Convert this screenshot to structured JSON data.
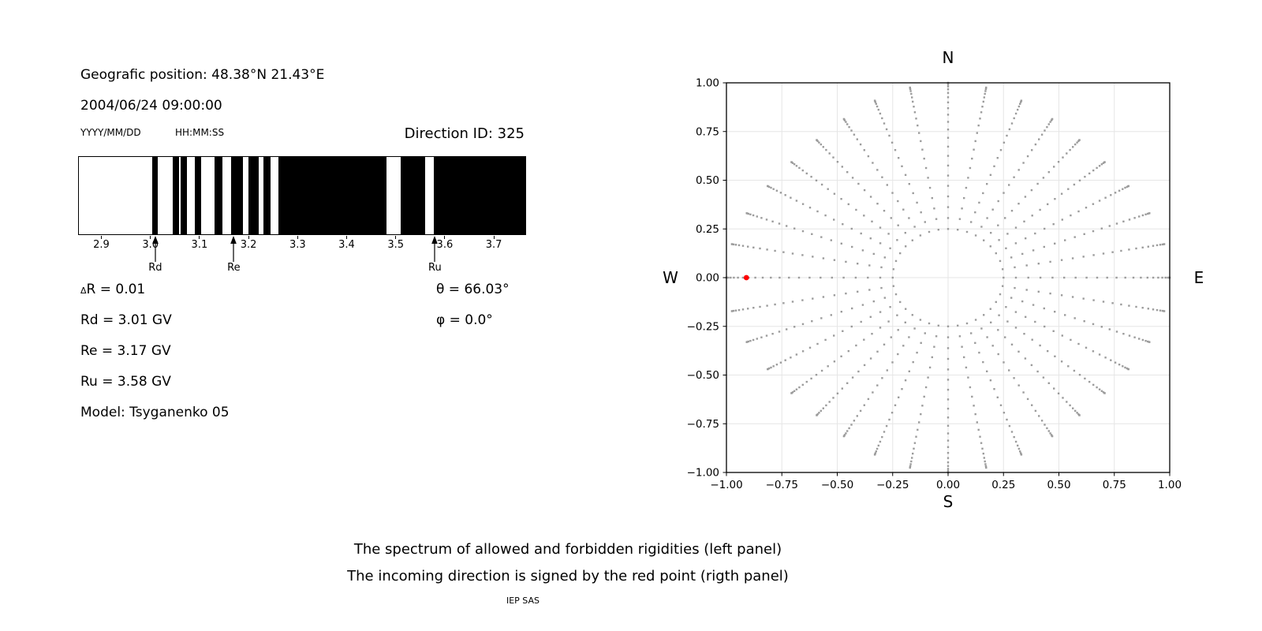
{
  "header": {
    "geo_position": "Geografic position: 48.38°N 21.43°E",
    "datetime": "2004/06/24 09:00:00",
    "date_format_hint": "YYYY/MM/DD",
    "time_format_hint": "HH:MM:SS",
    "direction_id": "Direction ID: 325"
  },
  "info_panel": {
    "delta_symbol": "Δ",
    "delta_r_rest": "R = 0.01",
    "rd": "Rd = 3.01 GV",
    "re": "Re = 3.17 GV",
    "ru": "Ru = 3.58 GV",
    "model": "Model: Tsyganenko 05",
    "theta": "θ = 66.03°",
    "phi": "φ = 0.0°"
  },
  "captions": {
    "line1": "The spectrum of allowed and forbidden rigidities (left panel)",
    "line2": "The incoming direction is signed by the red point (rigth panel)",
    "credit": "IEP SAS"
  },
  "chart_data": [
    {
      "type": "bar",
      "name": "rigidity-spectrum",
      "title": "Direction ID: 325",
      "xlim": [
        2.855,
        3.765
      ],
      "xticks": [
        2.9,
        3.0,
        3.1,
        3.2,
        3.3,
        3.4,
        3.5,
        3.6,
        3.7
      ],
      "allowed_color": "#ffffff",
      "forbidden_color": "#000000",
      "forbidden_bands_gv": [
        [
          3.005,
          3.016
        ],
        [
          3.046,
          3.059
        ],
        [
          3.063,
          3.076
        ],
        [
          3.092,
          3.105
        ],
        [
          3.131,
          3.147
        ],
        [
          3.166,
          3.19
        ],
        [
          3.2,
          3.222
        ],
        [
          3.231,
          3.246
        ],
        [
          3.262,
          3.482
        ],
        [
          3.511,
          3.56
        ],
        [
          3.579,
          3.765
        ]
      ],
      "markers": [
        {
          "label": "Rd",
          "value_gv": 3.01
        },
        {
          "label": "Re",
          "value_gv": 3.17
        },
        {
          "label": "Ru",
          "value_gv": 3.58
        }
      ]
    },
    {
      "type": "scatter",
      "name": "incoming-direction-map",
      "xlim": [
        -1,
        1
      ],
      "ylim": [
        -1,
        1
      ],
      "grid": true,
      "grid_color": "#e6e6e6",
      "xticks": [
        {
          "v": -1.0,
          "label": "−1.00"
        },
        {
          "v": -0.75,
          "label": "−0.75"
        },
        {
          "v": -0.5,
          "label": "−0.50"
        },
        {
          "v": -0.25,
          "label": "−0.25"
        },
        {
          "v": 0.0,
          "label": "0.00"
        },
        {
          "v": 0.25,
          "label": "0.25"
        },
        {
          "v": 0.5,
          "label": "0.50"
        },
        {
          "v": 0.75,
          "label": "0.75"
        },
        {
          "v": 1.0,
          "label": "1.00"
        }
      ],
      "yticks": [
        {
          "v": 1.0,
          "label": "1.00"
        },
        {
          "v": 0.75,
          "label": "0.75"
        },
        {
          "v": 0.5,
          "label": "0.50"
        },
        {
          "v": 0.25,
          "label": "0.25"
        },
        {
          "v": 0.0,
          "label": "0.00"
        },
        {
          "v": -0.25,
          "label": "−0.25"
        },
        {
          "v": -0.5,
          "label": "−0.50"
        },
        {
          "v": -0.75,
          "label": "−0.75"
        },
        {
          "v": -1.0,
          "label": "−1.00"
        }
      ],
      "compass_labels": {
        "top": "N",
        "bottom": "S",
        "left": "W",
        "right": "E"
      },
      "dot_color": "#9c9c9c",
      "dot_field": {
        "azimuth_count": 36,
        "dots_per_spoke": 22,
        "inner_radius": 0.25,
        "outer_radius_cardinal": 1.0,
        "outer_radius_diagonal": 0.92
      },
      "red_point": {
        "x": -0.91,
        "y": 0.0,
        "color": "#ff0000"
      }
    }
  ]
}
